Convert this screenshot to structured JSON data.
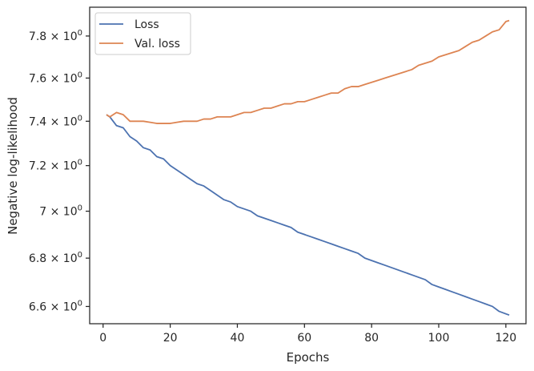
{
  "chart_data": {
    "type": "line",
    "xlabel": "Epochs",
    "ylabel": "Negative log-likelihood",
    "yscale": "log",
    "xlim": [
      -4,
      126
    ],
    "ylim": [
      6.53,
      7.94
    ],
    "xticks": [
      0,
      20,
      40,
      60,
      80,
      100,
      120
    ],
    "xtick_labels": [
      "0",
      "20",
      "40",
      "60",
      "80",
      "100",
      "120"
    ],
    "yticks": [
      6.6,
      6.8,
      7.0,
      7.2,
      7.4,
      7.6,
      7.8
    ],
    "ytick_mantissas": [
      "6.6",
      "6.8",
      "7",
      "7.2",
      "7.4",
      "7.6",
      "7.8"
    ],
    "ytick_base": "10",
    "ytick_exponent": "0",
    "legend_position": "top-left",
    "grid": false,
    "series": [
      {
        "name": "Loss",
        "color": "#4c72b0",
        "x": [
          1,
          2,
          4,
          6,
          8,
          10,
          12,
          14,
          16,
          18,
          20,
          22,
          24,
          26,
          28,
          30,
          32,
          34,
          36,
          38,
          40,
          42,
          44,
          46,
          48,
          50,
          52,
          54,
          56,
          58,
          60,
          62,
          64,
          66,
          68,
          70,
          72,
          74,
          76,
          78,
          80,
          82,
          84,
          86,
          88,
          90,
          92,
          94,
          96,
          98,
          100,
          102,
          104,
          106,
          108,
          110,
          112,
          114,
          116,
          118,
          120,
          121
        ],
        "values": [
          7.43,
          7.42,
          7.38,
          7.37,
          7.33,
          7.31,
          7.28,
          7.27,
          7.24,
          7.23,
          7.2,
          7.18,
          7.16,
          7.14,
          7.12,
          7.11,
          7.09,
          7.07,
          7.05,
          7.04,
          7.02,
          7.01,
          7.0,
          6.98,
          6.97,
          6.96,
          6.95,
          6.94,
          6.93,
          6.91,
          6.9,
          6.89,
          6.88,
          6.87,
          6.86,
          6.85,
          6.84,
          6.83,
          6.82,
          6.8,
          6.79,
          6.78,
          6.77,
          6.76,
          6.75,
          6.74,
          6.73,
          6.72,
          6.71,
          6.69,
          6.68,
          6.67,
          6.66,
          6.65,
          6.64,
          6.63,
          6.62,
          6.61,
          6.6,
          6.58,
          6.57,
          6.565
        ]
      },
      {
        "name": "Val. loss",
        "color": "#dd8452",
        "x": [
          1,
          2,
          4,
          6,
          8,
          10,
          12,
          14,
          16,
          18,
          20,
          22,
          24,
          26,
          28,
          30,
          32,
          34,
          36,
          38,
          40,
          42,
          44,
          46,
          48,
          50,
          52,
          54,
          56,
          58,
          60,
          62,
          64,
          66,
          68,
          70,
          72,
          74,
          76,
          78,
          80,
          82,
          84,
          86,
          88,
          90,
          92,
          94,
          96,
          98,
          100,
          102,
          104,
          106,
          108,
          110,
          112,
          114,
          116,
          118,
          120,
          121
        ],
        "values": [
          7.43,
          7.42,
          7.44,
          7.43,
          7.4,
          7.4,
          7.4,
          7.395,
          7.39,
          7.39,
          7.39,
          7.395,
          7.4,
          7.4,
          7.4,
          7.41,
          7.41,
          7.42,
          7.42,
          7.42,
          7.43,
          7.44,
          7.44,
          7.45,
          7.46,
          7.46,
          7.47,
          7.48,
          7.48,
          7.49,
          7.49,
          7.5,
          7.51,
          7.52,
          7.53,
          7.53,
          7.55,
          7.56,
          7.56,
          7.57,
          7.58,
          7.59,
          7.6,
          7.61,
          7.62,
          7.63,
          7.64,
          7.66,
          7.67,
          7.68,
          7.7,
          7.71,
          7.72,
          7.73,
          7.75,
          7.77,
          7.78,
          7.8,
          7.82,
          7.83,
          7.87,
          7.875
        ]
      }
    ]
  }
}
